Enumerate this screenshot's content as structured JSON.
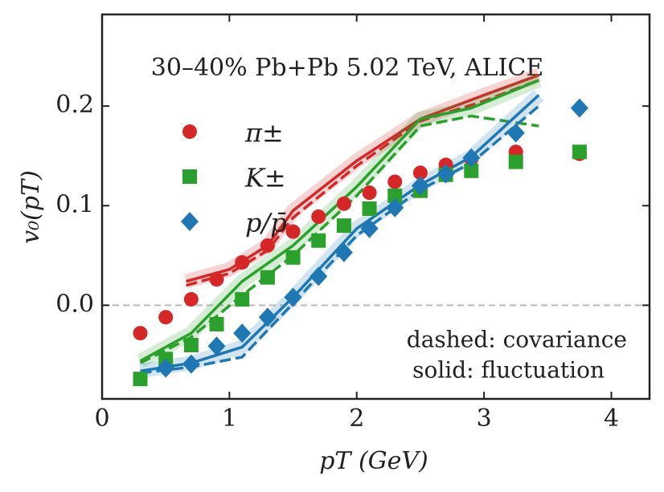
{
  "chart_data": {
    "type": "scatter",
    "title": "30–40% Pb+Pb 5.02 TeV, ALICE",
    "xlabel": "pT (GeV)",
    "ylabel": "v₀(pT)",
    "annotations": [
      "dashed: covariance",
      "solid: fluctuation"
    ],
    "xlim": [
      0,
      4.3
    ],
    "ylim": [
      -0.094,
      0.292
    ],
    "xticks": [
      0,
      1,
      2,
      3,
      4
    ],
    "yticks": [
      {
        "value": 0,
        "label": "0.0"
      },
      0.1,
      0.2
    ],
    "zero_line": true,
    "series": [
      {
        "name": "π±",
        "color": "#d62728",
        "marker": "circle",
        "x": [
          0.3,
          0.5,
          0.7,
          0.9,
          1.1,
          1.3,
          1.5,
          1.7,
          1.9,
          2.1,
          2.3,
          2.5,
          2.7,
          2.9,
          3.25,
          3.75
        ],
        "values": [
          -0.028,
          -0.012,
          0.006,
          0.026,
          0.043,
          0.06,
          0.074,
          0.089,
          0.102,
          0.113,
          0.124,
          0.133,
          0.141,
          0.147,
          0.154,
          0.152
        ]
      },
      {
        "name": "K±",
        "color": "#2ca02c",
        "marker": "square",
        "x": [
          0.3,
          0.5,
          0.7,
          0.9,
          1.1,
          1.3,
          1.5,
          1.7,
          1.9,
          2.1,
          2.3,
          2.5,
          2.7,
          2.9,
          3.25,
          3.75
        ],
        "values": [
          -0.074,
          -0.054,
          -0.04,
          -0.019,
          0.006,
          0.028,
          0.048,
          0.065,
          0.08,
          0.097,
          0.11,
          0.115,
          0.131,
          0.135,
          0.144,
          0.154
        ]
      },
      {
        "name": "p/p̄",
        "color": "#1f77b4",
        "marker": "diamond",
        "x": [
          0.5,
          0.7,
          0.9,
          1.1,
          1.3,
          1.5,
          1.7,
          1.9,
          2.1,
          2.3,
          2.5,
          2.7,
          2.9,
          3.25,
          3.75
        ],
        "values": [
          -0.063,
          -0.059,
          -0.041,
          -0.028,
          -0.012,
          0.008,
          0.029,
          0.053,
          0.077,
          0.098,
          0.12,
          0.132,
          0.148,
          0.173,
          0.198
        ]
      }
    ],
    "lines": [
      {
        "color": "#d62728",
        "style": "solid",
        "x": [
          0.66,
          1.0,
          1.3,
          1.5,
          2.0,
          2.5,
          3.0,
          3.43
        ],
        "values": [
          0.024,
          0.036,
          0.06,
          0.095,
          0.145,
          0.187,
          0.211,
          0.231
        ]
      },
      {
        "color": "#d62728",
        "style": "dashed",
        "x": [
          0.66,
          1.0,
          1.3,
          1.5,
          2.0,
          2.5,
          3.0,
          3.43
        ],
        "values": [
          0.02,
          0.032,
          0.055,
          0.088,
          0.14,
          0.185,
          0.205,
          0.226
        ]
      },
      {
        "color": "#2ca02c",
        "style": "solid",
        "x": [
          0.3,
          0.7,
          1.1,
          1.5,
          2.0,
          2.5,
          2.9,
          3.43
        ],
        "values": [
          -0.056,
          -0.028,
          0.024,
          0.06,
          0.119,
          0.187,
          0.198,
          0.226
        ]
      },
      {
        "color": "#2ca02c",
        "style": "dashed",
        "x": [
          0.3,
          0.7,
          1.1,
          1.5,
          2.0,
          2.5,
          2.9,
          3.43
        ],
        "values": [
          -0.058,
          -0.032,
          0.01,
          0.05,
          0.11,
          0.18,
          0.19,
          0.18
        ]
      },
      {
        "color": "#1f77b4",
        "style": "solid",
        "x": [
          0.3,
          0.7,
          1.1,
          1.5,
          2.0,
          2.5,
          2.9,
          3.43
        ],
        "values": [
          -0.066,
          -0.058,
          -0.042,
          0.008,
          0.077,
          0.121,
          0.149,
          0.211
        ]
      },
      {
        "color": "#1f77b4",
        "style": "dashed",
        "x": [
          0.3,
          0.7,
          1.1,
          1.5,
          2.0,
          2.5,
          2.9,
          3.43
        ],
        "values": [
          -0.068,
          -0.062,
          -0.052,
          0.002,
          0.07,
          0.116,
          0.143,
          0.2
        ]
      }
    ]
  }
}
